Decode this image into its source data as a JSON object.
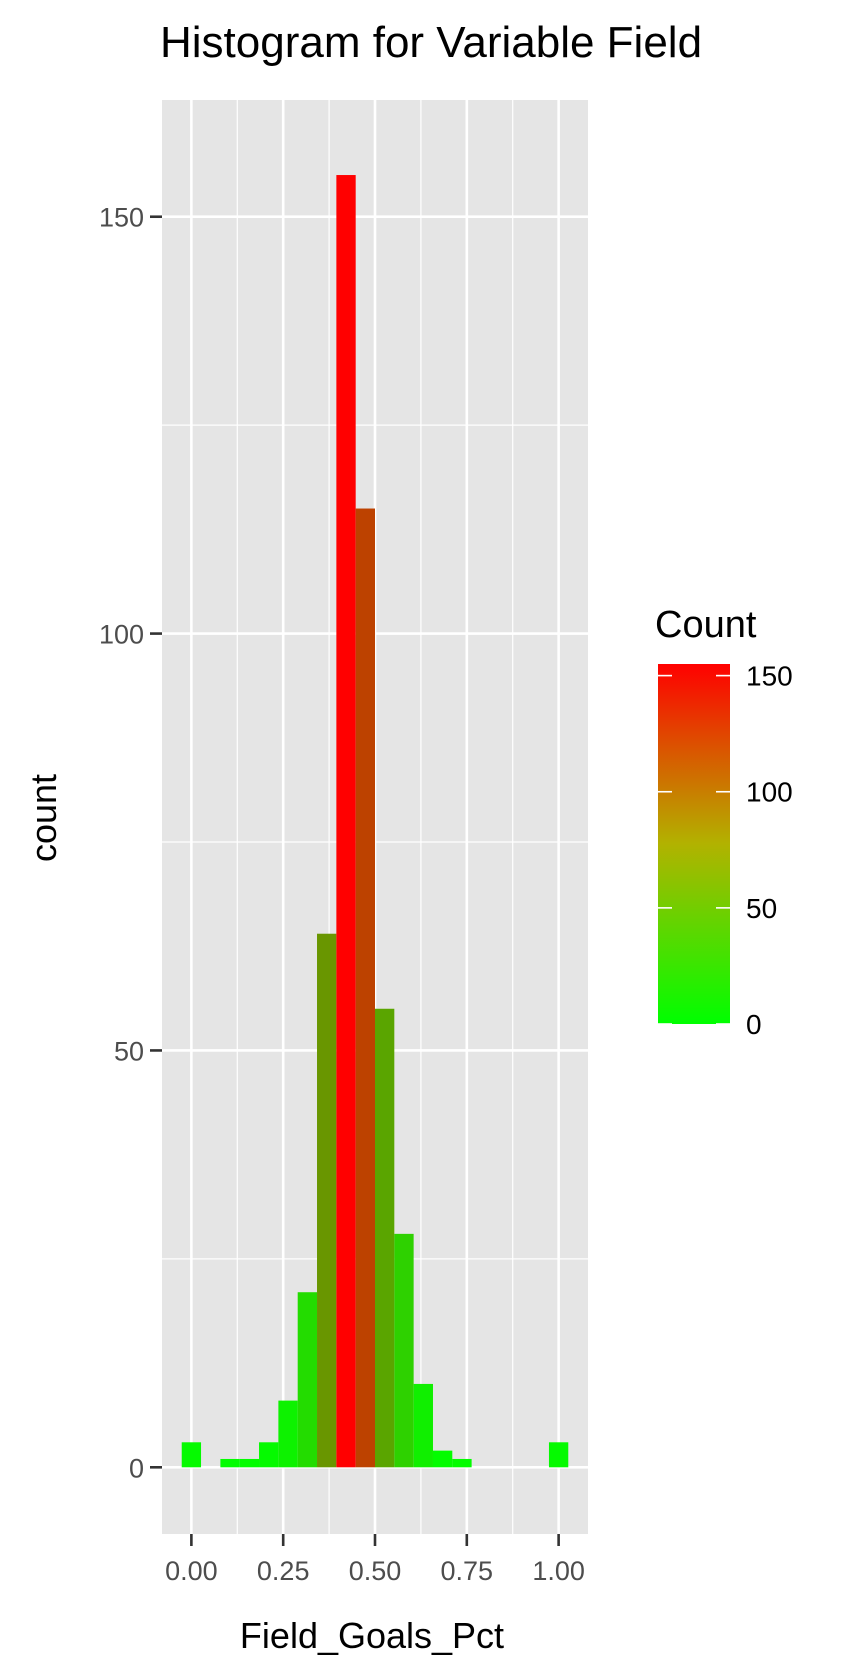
{
  "chart_data": {
    "type": "bar",
    "title": "Histogram for Variable Field",
    "xlabel": "Field_Goals_Pct",
    "ylabel": "count",
    "xlim": [
      -0.08,
      1.08
    ],
    "ylim": [
      -8,
      164
    ],
    "x_ticks": [
      0.0,
      0.25,
      0.5,
      0.75,
      1.0
    ],
    "x_tick_labels": [
      "0.00",
      "0.25",
      "0.50",
      "0.75",
      "1.00"
    ],
    "x_minor_ticks": [
      0.125,
      0.375,
      0.625,
      0.875
    ],
    "y_ticks": [
      0,
      50,
      100,
      150
    ],
    "y_tick_labels": [
      "0",
      "50",
      "100",
      "150"
    ],
    "y_minor_ticks": [
      25,
      75,
      125
    ],
    "bin_width": 0.0526,
    "bins": [
      {
        "x": 0.0,
        "count": 3
      },
      {
        "x": 0.1053,
        "count": 1
      },
      {
        "x": 0.1579,
        "count": 1
      },
      {
        "x": 0.2105,
        "count": 3
      },
      {
        "x": 0.2632,
        "count": 8
      },
      {
        "x": 0.3158,
        "count": 21
      },
      {
        "x": 0.3684,
        "count": 64
      },
      {
        "x": 0.4211,
        "count": 155
      },
      {
        "x": 0.4737,
        "count": 115
      },
      {
        "x": 0.5263,
        "count": 55
      },
      {
        "x": 0.5789,
        "count": 28
      },
      {
        "x": 0.6316,
        "count": 10
      },
      {
        "x": 0.6842,
        "count": 2
      },
      {
        "x": 0.7368,
        "count": 1
      },
      {
        "x": 1.0,
        "count": 3
      }
    ],
    "fill_scale": {
      "low": "#00ff00",
      "high": "#ff0000",
      "min": 0,
      "max": 155
    },
    "panel_background": "#e5e5e5",
    "grid": true,
    "legend": {
      "title": "Count",
      "position": "right",
      "breaks": [
        0,
        50,
        100,
        150
      ],
      "labels": [
        "0",
        "50",
        "100",
        "150"
      ]
    }
  }
}
